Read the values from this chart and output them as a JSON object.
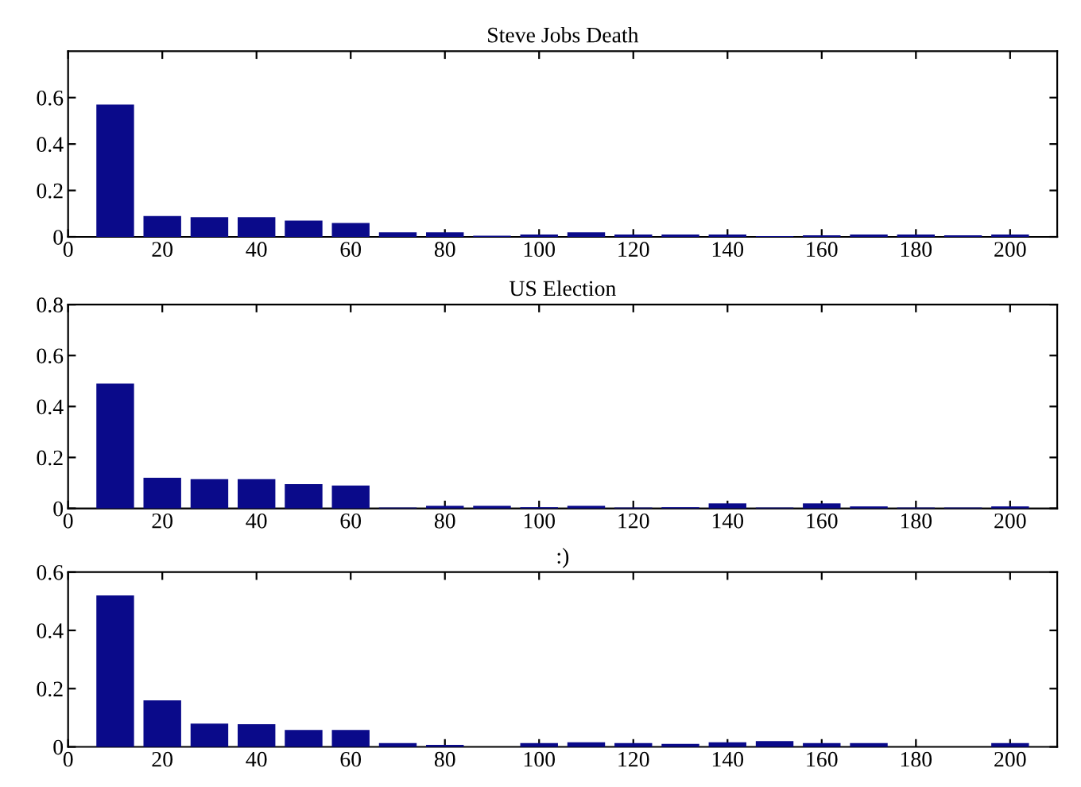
{
  "chart_data": [
    {
      "type": "bar",
      "title": "Steve Jobs Death",
      "x": [
        10,
        20,
        30,
        40,
        50,
        60,
        70,
        80,
        90,
        100,
        110,
        120,
        130,
        140,
        150,
        160,
        170,
        180,
        190,
        200
      ],
      "color": "#0a0a8a",
      "values": [
        0.57,
        0.09,
        0.085,
        0.085,
        0.07,
        0.06,
        0.02,
        0.02,
        0.005,
        0.01,
        0.02,
        0.01,
        0.01,
        0.01,
        0.003,
        0.007,
        0.01,
        0.01,
        0.007,
        0.01
      ],
      "xlim": [
        0,
        210
      ],
      "xticks": [
        0,
        20,
        40,
        60,
        80,
        100,
        120,
        140,
        160,
        180,
        200
      ],
      "ylim": [
        0,
        0.8
      ],
      "yticks": [
        0,
        0.2,
        0.4,
        0.6
      ],
      "grid": false,
      "legend": false
    },
    {
      "type": "bar",
      "title": "US Election",
      "x": [
        10,
        20,
        30,
        40,
        50,
        60,
        70,
        80,
        90,
        100,
        110,
        120,
        130,
        140,
        150,
        160,
        170,
        180,
        190,
        200
      ],
      "color": "#0a0a8a",
      "values": [
        0.49,
        0.12,
        0.115,
        0.115,
        0.095,
        0.09,
        0.003,
        0.01,
        0.01,
        0.005,
        0.01,
        0.003,
        0.005,
        0.02,
        0.003,
        0.02,
        0.008,
        0.003,
        0.003,
        0.008
      ],
      "xlim": [
        0,
        210
      ],
      "xticks": [
        0,
        20,
        40,
        60,
        80,
        100,
        120,
        140,
        160,
        180,
        200
      ],
      "ylim": [
        0,
        0.8
      ],
      "yticks": [
        0,
        0.2,
        0.4,
        0.6,
        0.8
      ],
      "grid": false,
      "legend": false
    },
    {
      "type": "bar",
      "title": ":)",
      "x": [
        10,
        20,
        30,
        40,
        50,
        60,
        70,
        80,
        90,
        100,
        110,
        120,
        130,
        140,
        150,
        160,
        170,
        180,
        190,
        200
      ],
      "color": "#0a0a8a",
      "values": [
        0.52,
        0.16,
        0.08,
        0.078,
        0.058,
        0.058,
        0.013,
        0.007,
        0,
        0.013,
        0.016,
        0.013,
        0.01,
        0.016,
        0.02,
        0.013,
        0.013,
        0,
        0,
        0.013
      ],
      "xlim": [
        0,
        210
      ],
      "xticks": [
        0,
        20,
        40,
        60,
        80,
        100,
        120,
        140,
        160,
        180,
        200
      ],
      "ylim": [
        0,
        0.6
      ],
      "yticks": [
        0,
        0.2,
        0.4,
        0.6
      ],
      "grid": false,
      "legend": false
    }
  ]
}
